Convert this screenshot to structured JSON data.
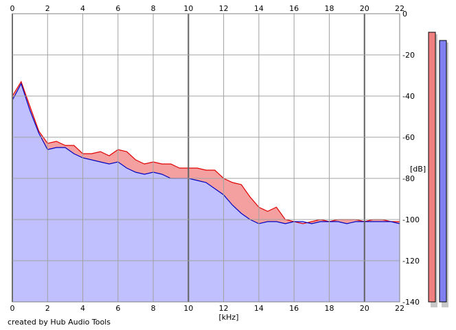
{
  "credit": "created by Hub Audio Tools",
  "chart_data": {
    "type": "area",
    "xlabel": "[kHz]",
    "ylabel": "[dB]",
    "xlim": [
      0,
      22
    ],
    "ylim": [
      -140,
      0
    ],
    "x_ticks": [
      0,
      2,
      4,
      6,
      8,
      10,
      12,
      14,
      16,
      18,
      20,
      22
    ],
    "y_ticks": [
      0,
      -20,
      -40,
      -60,
      -80,
      -100,
      -120,
      -140
    ],
    "y_tick_labels": [
      "0",
      "-20",
      "-40",
      "-60",
      "-80",
      "-100",
      "-120",
      "-140"
    ],
    "grid": true,
    "x": [
      0,
      0.5,
      1,
      1.5,
      2,
      2.5,
      3,
      3.5,
      4,
      4.5,
      5,
      5.5,
      6,
      6.5,
      7,
      7.5,
      8,
      8.5,
      9,
      9.5,
      10,
      10.5,
      11,
      11.5,
      12,
      12.5,
      13,
      13.5,
      14,
      14.5,
      15,
      15.5,
      16,
      16.5,
      17,
      17.5,
      18,
      18.5,
      19,
      19.5,
      20,
      20.5,
      21,
      21.5,
      22
    ],
    "series": [
      {
        "color": "#e00000",
        "fill": "#f4a0a0",
        "values": [
          -40,
          -33,
          -45,
          -57,
          -63,
          -62,
          -64,
          -64,
          -68,
          -68,
          -67,
          -69,
          -66,
          -67,
          -71,
          -73,
          -72,
          -73,
          -73,
          -75,
          -75,
          -75,
          -76,
          -76,
          -80,
          -82,
          -83,
          -89,
          -94,
          -96,
          -94,
          -100,
          -101,
          -102,
          -101,
          -100,
          -101,
          -100,
          -100,
          -100,
          -101,
          -100,
          -100,
          -101,
          -101
        ]
      },
      {
        "color": "#0000c0",
        "fill": "#c0c0ff",
        "values": [
          -42,
          -34,
          -47,
          -58,
          -66,
          -65,
          -65,
          -68,
          -70,
          -71,
          -72,
          -73,
          -72,
          -75,
          -77,
          -78,
          -77,
          -78,
          -80,
          -80,
          -80,
          -81,
          -82,
          -85,
          -88,
          -93,
          -97,
          -100,
          -102,
          -101,
          -101,
          -102,
          -101,
          -101,
          -102,
          -101,
          -101,
          -101,
          -102,
          -101,
          -101,
          -101,
          -101,
          -101,
          -102
        ]
      }
    ],
    "level_meters": [
      {
        "color": "#f08080",
        "level_db": -9
      },
      {
        "color": "#8080f0",
        "level_db": -13
      }
    ]
  }
}
